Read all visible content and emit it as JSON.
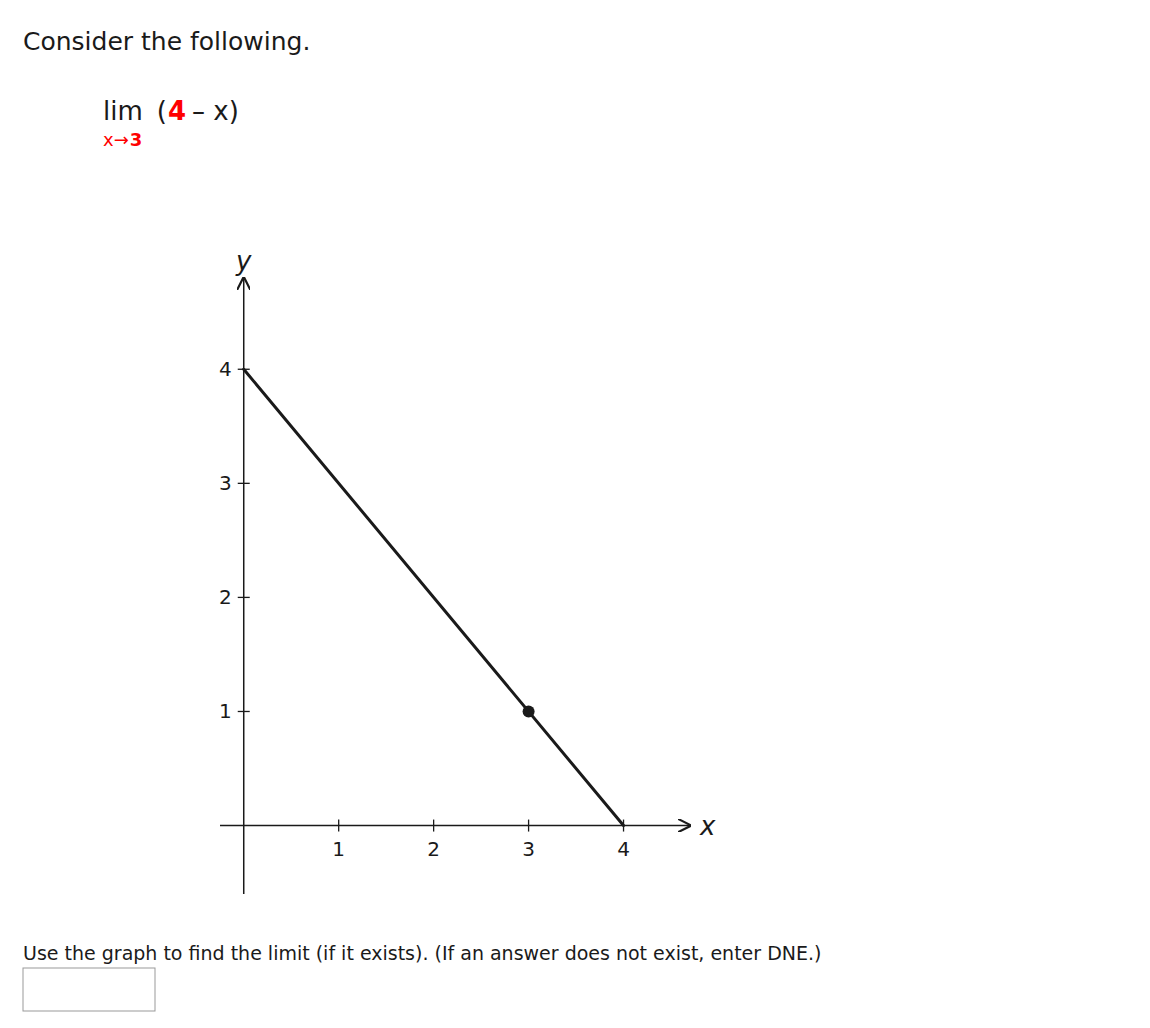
{
  "chart_data": {
    "type": "line",
    "title": "Consider the following.",
    "xlabel": "x",
    "ylabel": "y",
    "xlim": [
      -0.25,
      4.7
    ],
    "ylim": [
      -0.6,
      4.8
    ],
    "xticks": [
      1,
      2,
      3,
      4
    ],
    "yticks": [
      1,
      2,
      3,
      4
    ],
    "series": [
      {
        "type": "line",
        "x": [
          0,
          4
        ],
        "values": [
          4,
          0
        ],
        "color": "#1a1a1a"
      },
      {
        "type": "scatter",
        "x": [
          3
        ],
        "values": [
          1
        ],
        "color": "#1a1a1a"
      }
    ],
    "annotations": [
      {
        "text": "lim"
      },
      {
        "text": "x→",
        "color": "#ff0000"
      },
      {
        "text": "3",
        "color": "#ff0000"
      },
      {
        "text": "("
      },
      {
        "text": "4",
        "color": "#ff0000"
      },
      {
        "text": "– x)"
      },
      {
        "text": "Use the graph to find the limit (if it exists). (If an answer does not exist, enter DNE.)"
      }
    ]
  }
}
